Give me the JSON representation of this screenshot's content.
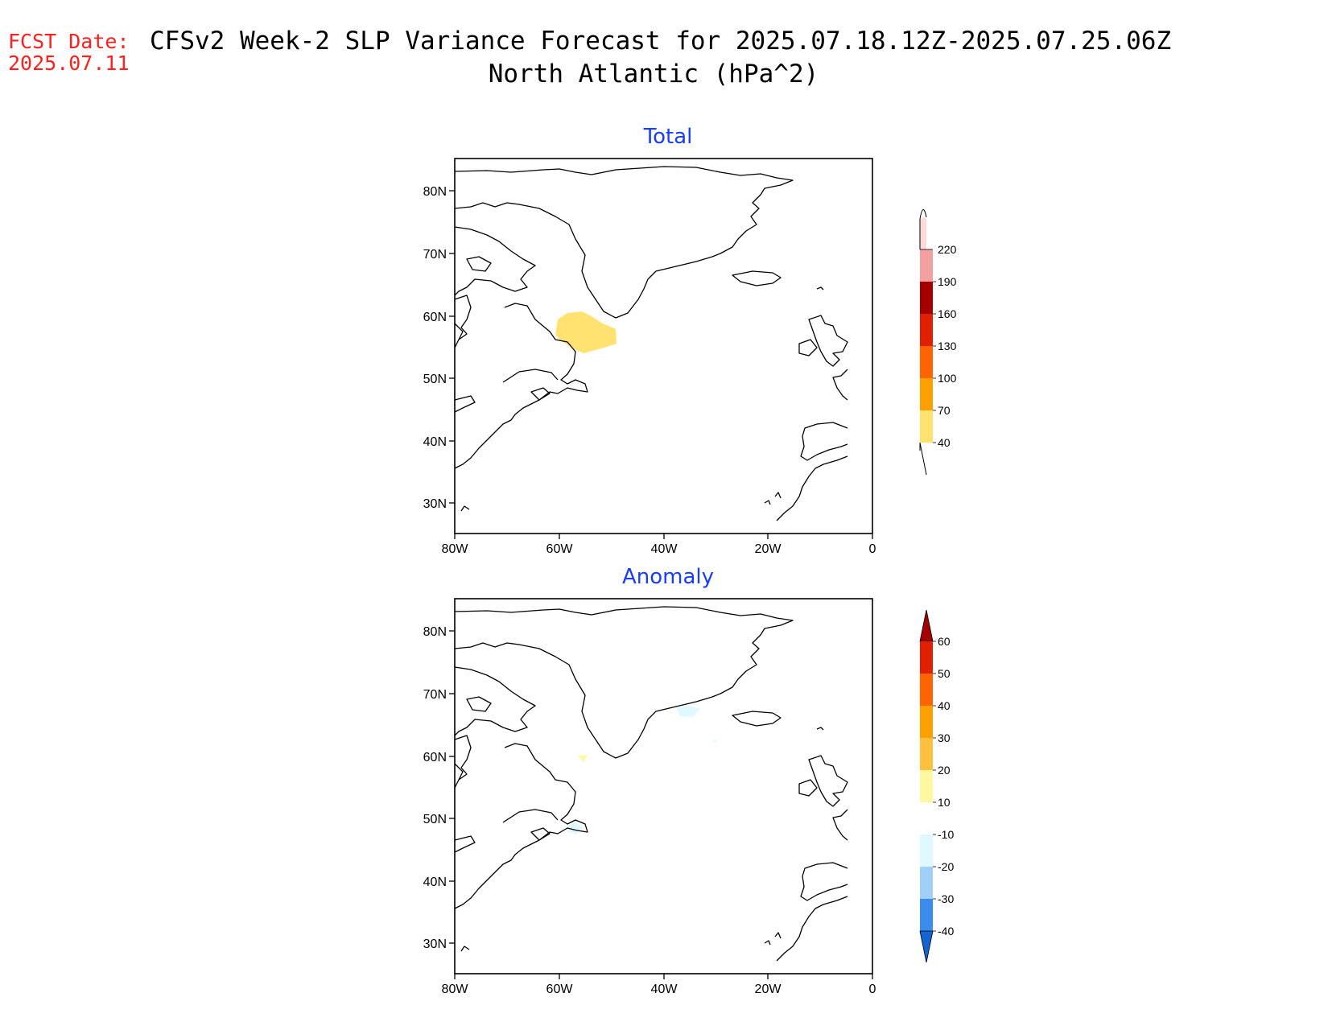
{
  "header": {
    "fcst_label": "FCST Date:",
    "fcst_date": "2025.07.11",
    "title_line1": "CFSv2 Week-2 SLP Variance Forecast for 2025.07.18.12Z-2025.07.25.06Z",
    "title_line2": "North Atlantic (hPa^2)"
  },
  "axes": {
    "lat_ticks": [
      "80N",
      "70N",
      "60N",
      "50N",
      "40N",
      "30N"
    ],
    "lon_ticks": [
      "80W",
      "60W",
      "40W",
      "20W",
      "0"
    ]
  },
  "panels": [
    {
      "title": "Total",
      "colorbar": {
        "labels": [
          "220",
          "190",
          "160",
          "130",
          "100",
          "70",
          "40"
        ],
        "colors": [
          "#ffd8d8",
          "#f4a0a0",
          "#a50000",
          "#e02000",
          "#ff6400",
          "#ffa000",
          "#ffe270"
        ],
        "extends": "both"
      },
      "shaded_region": "yellow 40-70 area over Labrador Sea / Newfoundland coast near 55N 55W"
    },
    {
      "title": "Anomaly",
      "colorbar": {
        "labels": [
          "60",
          "50",
          "40",
          "30",
          "20",
          "10",
          "-10",
          "-20",
          "-30",
          "-40"
        ],
        "colors": [
          "#a50000",
          "#e02000",
          "#ff6400",
          "#ffa000",
          "#ffc040",
          "#fff8a0",
          "#ffffff",
          "#e0f8ff",
          "#a0d0f8",
          "#3c8cf0",
          "#1464d2"
        ],
        "extends": "both"
      },
      "shaded_region": "small light blue and yellow specks near Greenland and Newfoundland"
    }
  ],
  "colors": {
    "title": "#000000",
    "fcst": "#ff2020",
    "panel_title": "#1a3cff"
  }
}
